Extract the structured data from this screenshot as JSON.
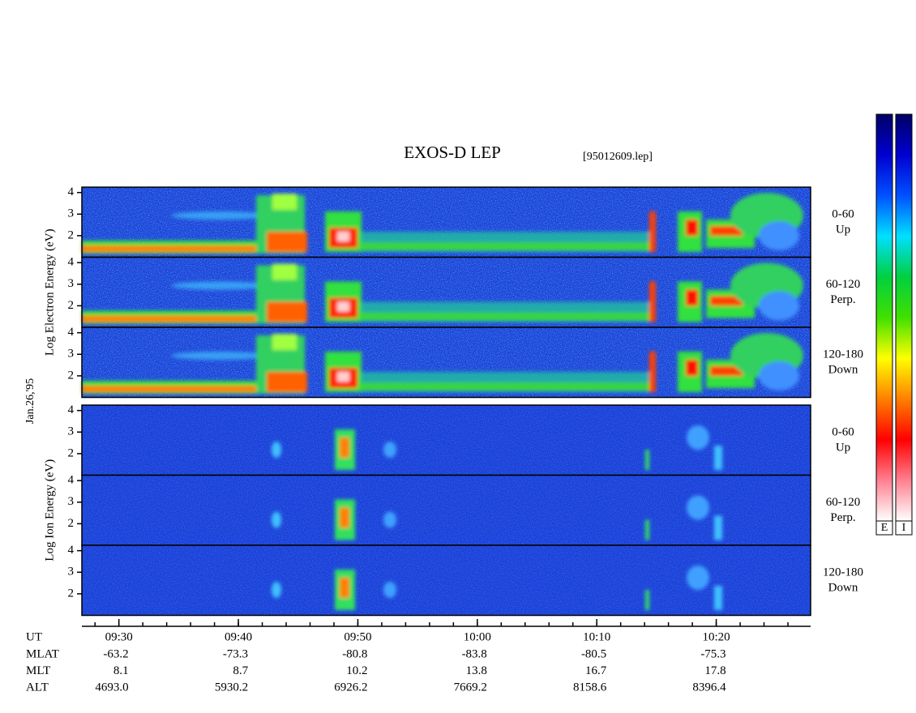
{
  "chart_data": {
    "type": "spectrogram",
    "title": "EXOS-D LEP",
    "file": "[95012609.lep]",
    "date": "Jan.26,'95",
    "groups": [
      {
        "ylabel": "Log Electron Energy (eV)",
        "panels": [
          {
            "label": [
              "0-60",
              "Up"
            ]
          },
          {
            "label": [
              "60-120",
              "Perp."
            ]
          },
          {
            "label": [
              "120-180",
              "Down"
            ]
          }
        ]
      },
      {
        "ylabel": "Log Ion Energy (eV)",
        "panels": [
          {
            "label": [
              "0-60",
              "Up"
            ]
          },
          {
            "label": [
              "60-120",
              "Perp."
            ]
          },
          {
            "label": [
              "120-180",
              "Down"
            ]
          }
        ]
      }
    ],
    "ylim": [
      1,
      4.25
    ],
    "yticks": [
      2,
      3,
      4
    ],
    "xlim": [
      26.9,
      87.9
    ],
    "xticks": [
      {
        "value": 30,
        "label": "09:30"
      },
      {
        "value": 40,
        "label": "09:40"
      },
      {
        "value": 50,
        "label": "09:50"
      },
      {
        "value": 60,
        "label": "10:00"
      },
      {
        "value": 70,
        "label": "10:10"
      },
      {
        "value": 80,
        "label": "10:20"
      }
    ],
    "x_minor_step": 2,
    "x_axis_name": "UT",
    "rows": [
      {
        "name": "MLAT",
        "values": [
          -63.2,
          -73.3,
          -80.8,
          -83.8,
          -80.5,
          -75.3
        ]
      },
      {
        "name": "MLT",
        "values": [
          8.1,
          8.7,
          10.2,
          13.8,
          16.7,
          17.8
        ]
      },
      {
        "name": "ALT",
        "values": [
          4693,
          5930.2,
          6926.2,
          7669.2,
          8158.6,
          8396.4
        ],
        "value_labels": [
          "4693.0",
          "5930.2",
          "6926.2",
          "7669.2",
          "8158.6",
          "8396.4"
        ]
      }
    ],
    "colorbars": [
      {
        "label": "E"
      },
      {
        "label": "I"
      }
    ],
    "colormap": [
      "#000066",
      "#0000d0",
      "#0050ff",
      "#00e0ff",
      "#00d040",
      "#40e000",
      "#ffff00",
      "#ff8000",
      "#ff0000",
      "#ff8090",
      "#ffffff"
    ]
  }
}
